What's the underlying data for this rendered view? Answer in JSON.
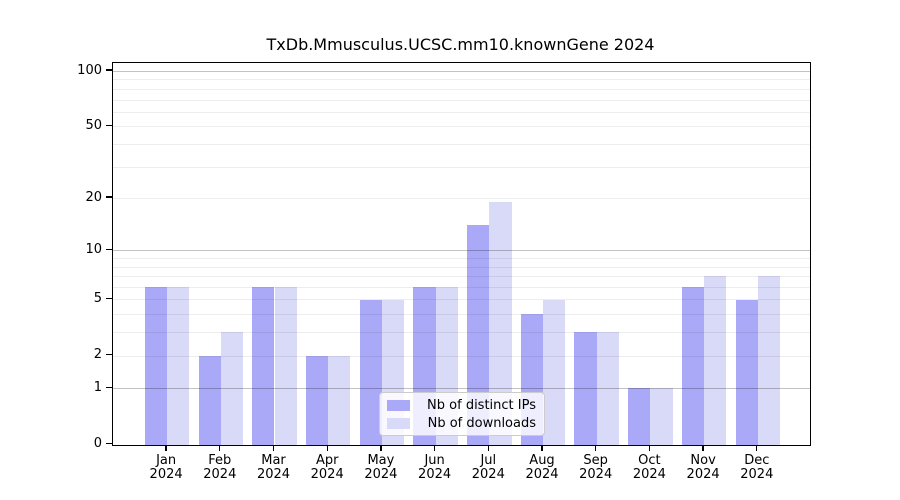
{
  "chart_data": {
    "type": "bar",
    "title": "TxDb.Mmusculus.UCSC.mm10.knownGene 2024",
    "categories": [
      "Jan",
      "Feb",
      "Mar",
      "Apr",
      "May",
      "Jun",
      "Jul",
      "Aug",
      "Sep",
      "Oct",
      "Nov",
      "Dec"
    ],
    "category_year": "2024",
    "series": [
      {
        "name": "Nb of distinct IPs",
        "color": "#a9a9f7",
        "values": [
          6,
          2,
          6,
          2,
          5,
          6,
          14,
          4,
          3,
          1,
          6,
          5
        ]
      },
      {
        "name": "Nb of downloads",
        "color": "#d9d9f8",
        "values": [
          6,
          3,
          6,
          2,
          5,
          6,
          19,
          5,
          3,
          1,
          7,
          7
        ]
      }
    ],
    "y_scale": "log1p",
    "y_ticks": [
      0,
      1,
      2,
      5,
      10,
      20,
      50,
      100
    ],
    "y_major_gridlines": [
      1,
      10,
      100
    ],
    "y_minor_gridlines": [
      2,
      3,
      4,
      5,
      6,
      7,
      8,
      9,
      20,
      30,
      40,
      50,
      60,
      70,
      80,
      90
    ],
    "ylim": [
      0,
      113
    ],
    "grid": true,
    "legend_position": "bottom-center",
    "xlabel": "",
    "ylabel": "",
    "colors": {
      "axis": "#000000",
      "major_grid": "#c2c2c2",
      "minor_grid": "#ededed",
      "legend_border": "#cccccc"
    }
  }
}
